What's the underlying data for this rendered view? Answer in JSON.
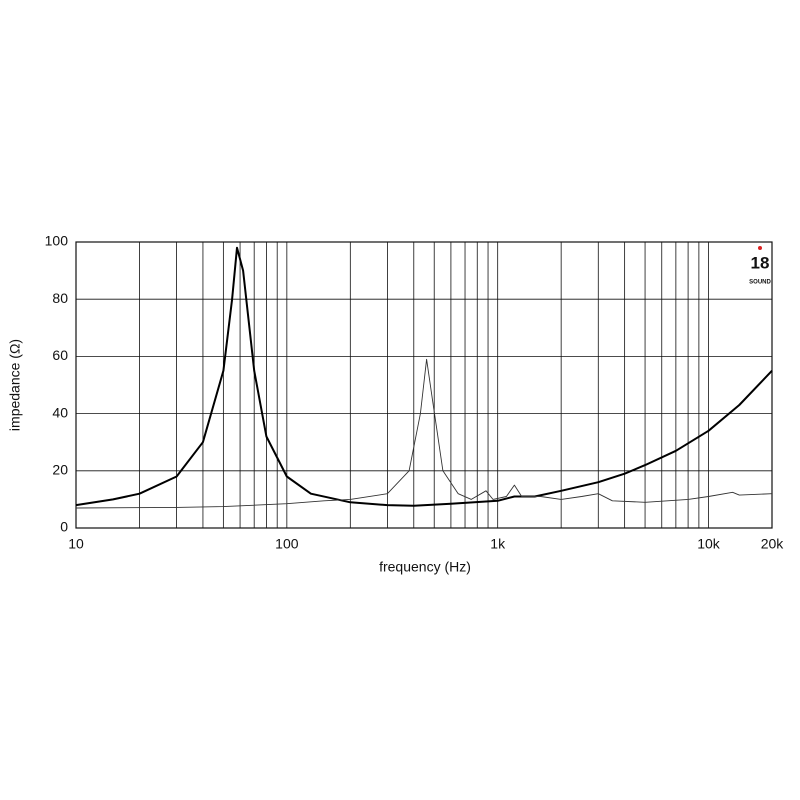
{
  "chart_data": {
    "type": "line",
    "x_label": "frequency (Hz)",
    "y_label": "impedance (Ω)",
    "xlim": [
      10,
      20000
    ],
    "ylim": [
      0,
      100
    ],
    "log_x": true,
    "grid": true,
    "minor_grid": true,
    "xticks": [
      10,
      100,
      {
        "value": 1000,
        "label": "1k"
      },
      {
        "value": 10000,
        "label": "10k"
      },
      {
        "value": 20000,
        "label": "20k"
      }
    ],
    "yticks": [
      0,
      20,
      40,
      60,
      80,
      100
    ],
    "series": [
      {
        "color": "#000000",
        "width": 2,
        "x": [
          10,
          15,
          20,
          30,
          40,
          50,
          55,
          58,
          62,
          70,
          80,
          100,
          130,
          200,
          300,
          400,
          600,
          1000,
          1200,
          1500,
          2000,
          3000,
          4000,
          5000,
          7000,
          10000,
          14000,
          20000
        ],
        "values": [
          8,
          10,
          12,
          18,
          30,
          55,
          80,
          98,
          90,
          55,
          32,
          18,
          12,
          9,
          8,
          7.8,
          8.5,
          9.5,
          11,
          11,
          13,
          16,
          19,
          22,
          27,
          34,
          43,
          55
        ]
      },
      {
        "color": "#333333",
        "width": 0.9,
        "x": [
          10,
          30,
          50,
          100,
          150,
          200,
          300,
          380,
          430,
          460,
          490,
          550,
          650,
          750,
          880,
          950,
          1100,
          1200,
          1300,
          1600,
          2000,
          2500,
          3000,
          3500,
          5000,
          8000,
          10000,
          13000,
          14000,
          20000
        ],
        "values": [
          7,
          7.2,
          7.5,
          8.5,
          9.5,
          10,
          12,
          20,
          40,
          59,
          45,
          20,
          12,
          10,
          13,
          10,
          11,
          15,
          11,
          11,
          10,
          11,
          12,
          9.5,
          9,
          10,
          11,
          12.5,
          11.5,
          12
        ]
      }
    ]
  },
  "logo": {
    "number": "18",
    "word": "SOUND"
  }
}
